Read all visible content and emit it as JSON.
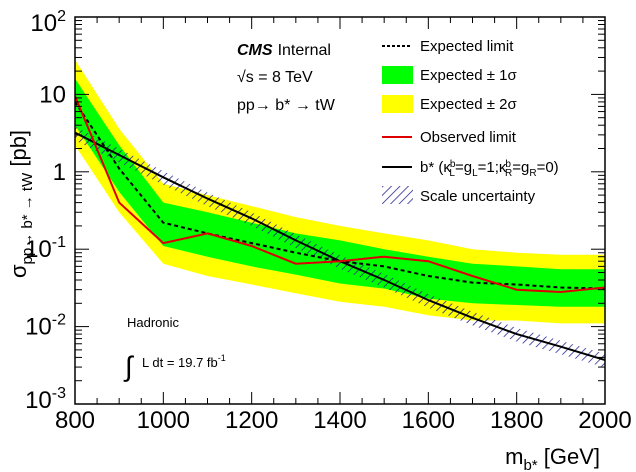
{
  "chart_data": {
    "type": "line",
    "title": "",
    "xlabel": "m_{b*} [GeV]",
    "ylabel": "σ_{pp→ b* → tW} [pb]",
    "xlim": [
      800,
      2000
    ],
    "ylim": [
      0.001,
      100
    ],
    "yscale": "log",
    "x_ticks": [
      800,
      1000,
      1200,
      1400,
      1600,
      1800,
      2000
    ],
    "y_ticks": [
      {
        "value": 0.001,
        "base": "10",
        "exp": "-3"
      },
      {
        "value": 0.01,
        "base": "10",
        "exp": "-2"
      },
      {
        "value": 0.1,
        "base": "10",
        "exp": "-1"
      },
      {
        "value": 1,
        "base": "1",
        "exp": ""
      },
      {
        "value": 10,
        "base": "10",
        "exp": ""
      },
      {
        "value": 100,
        "base": "10",
        "exp": "2"
      }
    ],
    "grid": false,
    "legend_position": "top-right",
    "x": [
      800,
      900,
      1000,
      1100,
      1200,
      1300,
      1400,
      1500,
      1600,
      1700,
      1800,
      1900,
      2000
    ],
    "series": [
      {
        "name": "Expected limit",
        "style": "dashed",
        "color": "#000000",
        "values": [
          8.0,
          1.1,
          0.22,
          0.16,
          0.12,
          0.09,
          0.07,
          0.06,
          0.045,
          0.037,
          0.035,
          0.032,
          0.031
        ]
      },
      {
        "name": "Expected ± 1σ",
        "style": "band",
        "color": "#00ff00",
        "lower": [
          4.0,
          0.55,
          0.11,
          0.08,
          0.06,
          0.047,
          0.036,
          0.031,
          0.023,
          0.02,
          0.019,
          0.018,
          0.018
        ],
        "upper": [
          16,
          2.2,
          0.4,
          0.3,
          0.22,
          0.16,
          0.13,
          0.1,
          0.08,
          0.065,
          0.06,
          0.055,
          0.055
        ]
      },
      {
        "name": "Expected ± 2σ",
        "style": "band",
        "color": "#ffff00",
        "lower": [
          2.2,
          0.3,
          0.065,
          0.045,
          0.035,
          0.027,
          0.021,
          0.018,
          0.014,
          0.012,
          0.012,
          0.011,
          0.011
        ],
        "upper": [
          28,
          3.6,
          0.7,
          0.5,
          0.36,
          0.26,
          0.2,
          0.16,
          0.13,
          0.1,
          0.09,
          0.085,
          0.085
        ]
      },
      {
        "name": "Observed limit",
        "style": "solid",
        "color": "#dd0000",
        "values": [
          9.5,
          0.4,
          0.12,
          0.16,
          0.11,
          0.065,
          0.07,
          0.08,
          0.07,
          0.045,
          0.03,
          0.028,
          0.032
        ]
      },
      {
        "name": "b* (κ_L^b=g_L=1;κ_R^b=g_R=0)",
        "style": "solid",
        "color": "#000000",
        "values": [
          3.2,
          1.65,
          0.85,
          0.45,
          0.25,
          0.13,
          0.07,
          0.04,
          0.022,
          0.013,
          0.008,
          0.0055,
          0.0037
        ]
      }
    ],
    "scale_uncertainty_label": "Scale uncertainty"
  },
  "annotations": {
    "cms_bold": "CMS",
    "cms_rest": "Internal",
    "sqrt_s": "√s = 8 TeV",
    "process": "pp→ b* → tW",
    "hadronic": "Hadronic",
    "lumi": "L dt = 19.7 fb",
    "lumi_exp": "-1"
  },
  "legend": {
    "expected": "Expected limit",
    "one_sigma": "Expected ± 1σ",
    "two_sigma": "Expected ± 2σ",
    "observed": "Observed limit",
    "bstar_prefix": "b* (κ",
    "bstar_mid1": "=g",
    "bstar_mid2": "=1;κ",
    "bstar_mid3": "=g",
    "bstar_suffix": "=0)",
    "sub_L": "L",
    "sub_R": "R",
    "sup_b": "b",
    "scale": "Scale uncertainty"
  },
  "axis_labels": {
    "x_main": "m",
    "x_sub": "b*",
    "x_unit": " [GeV]",
    "y_main": "σ",
    "y_sub": "pp→ b* → tW",
    "y_unit": " [pb]"
  },
  "colors": {
    "one_sigma": "#00ff00",
    "two_sigma": "#ffff00",
    "observed": "#dd0000",
    "theory": "#000000",
    "hatch": "#1a1a8c"
  }
}
